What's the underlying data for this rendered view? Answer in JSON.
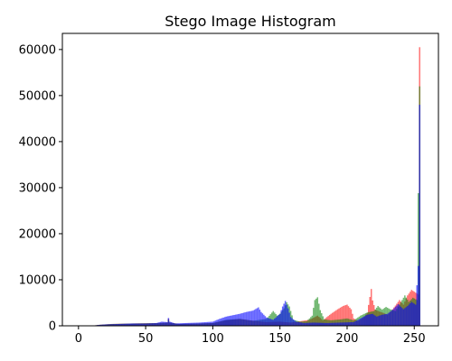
{
  "chart_data": {
    "type": "bar",
    "title": "Stego Image Histogram",
    "xlabel": "",
    "ylabel": "",
    "xlim": [
      -12,
      268
    ],
    "ylim": [
      0,
      63500
    ],
    "xticks": [
      0,
      50,
      100,
      150,
      200,
      250
    ],
    "yticks": [
      0,
      10000,
      20000,
      30000,
      40000,
      50000,
      60000
    ],
    "grid": false,
    "legend": "none",
    "bin_width": 1,
    "series": [
      {
        "color": "#ff0000",
        "alpha": 0.55,
        "points": [
          [
            0,
            0
          ],
          [
            10,
            0
          ],
          [
            15,
            200
          ],
          [
            25,
            400
          ],
          [
            40,
            500
          ],
          [
            60,
            600
          ],
          [
            66,
            700
          ],
          [
            67,
            1500
          ],
          [
            68,
            700
          ],
          [
            75,
            400
          ],
          [
            90,
            500
          ],
          [
            100,
            600
          ],
          [
            110,
            1200
          ],
          [
            120,
            1500
          ],
          [
            130,
            1100
          ],
          [
            140,
            800
          ],
          [
            150,
            900
          ],
          [
            158,
            700
          ],
          [
            165,
            1000
          ],
          [
            172,
            1300
          ],
          [
            178,
            2200
          ],
          [
            182,
            1200
          ],
          [
            188,
            2600
          ],
          [
            193,
            3600
          ],
          [
            197,
            4300
          ],
          [
            200,
            4600
          ],
          [
            203,
            3600
          ],
          [
            205,
            1600
          ],
          [
            208,
            1000
          ],
          [
            212,
            1700
          ],
          [
            215,
            2800
          ],
          [
            218,
            8000
          ],
          [
            219,
            5500
          ],
          [
            221,
            3500
          ],
          [
            224,
            3100
          ],
          [
            227,
            2800
          ],
          [
            230,
            2400
          ],
          [
            233,
            3200
          ],
          [
            236,
            4400
          ],
          [
            239,
            5600
          ],
          [
            242,
            4600
          ],
          [
            245,
            6600
          ],
          [
            248,
            7800
          ],
          [
            251,
            7200
          ],
          [
            253,
            6800
          ],
          [
            254,
            60500
          ],
          [
            255,
            0
          ]
        ]
      },
      {
        "color": "#008000",
        "alpha": 0.55,
        "points": [
          [
            0,
            0
          ],
          [
            10,
            0
          ],
          [
            15,
            200
          ],
          [
            25,
            400
          ],
          [
            40,
            500
          ],
          [
            60,
            600
          ],
          [
            66,
            700
          ],
          [
            67,
            1400
          ],
          [
            68,
            700
          ],
          [
            75,
            400
          ],
          [
            90,
            500
          ],
          [
            100,
            600
          ],
          [
            110,
            1300
          ],
          [
            120,
            1500
          ],
          [
            130,
            1100
          ],
          [
            140,
            1500
          ],
          [
            145,
            3200
          ],
          [
            148,
            2200
          ],
          [
            150,
            2600
          ],
          [
            153,
            3800
          ],
          [
            155,
            5100
          ],
          [
            157,
            4200
          ],
          [
            160,
            1300
          ],
          [
            165,
            900
          ],
          [
            170,
            1000
          ],
          [
            174,
            2200
          ],
          [
            176,
            5600
          ],
          [
            178,
            6200
          ],
          [
            180,
            3400
          ],
          [
            183,
            1400
          ],
          [
            188,
            1200
          ],
          [
            195,
            1400
          ],
          [
            200,
            1600
          ],
          [
            205,
            1200
          ],
          [
            210,
            2200
          ],
          [
            215,
            2900
          ],
          [
            220,
            3200
          ],
          [
            223,
            4300
          ],
          [
            226,
            3500
          ],
          [
            229,
            4100
          ],
          [
            232,
            3600
          ],
          [
            236,
            3200
          ],
          [
            240,
            5100
          ],
          [
            243,
            6600
          ],
          [
            246,
            5200
          ],
          [
            249,
            6100
          ],
          [
            252,
            5600
          ],
          [
            254,
            52000
          ],
          [
            255,
            0
          ]
        ]
      },
      {
        "color": "#0000ff",
        "alpha": 0.6,
        "points": [
          [
            0,
            0
          ],
          [
            10,
            0
          ],
          [
            15,
            200
          ],
          [
            20,
            300
          ],
          [
            30,
            400
          ],
          [
            40,
            500
          ],
          [
            50,
            500
          ],
          [
            58,
            600
          ],
          [
            62,
            900
          ],
          [
            66,
            800
          ],
          [
            67,
            1700
          ],
          [
            68,
            900
          ],
          [
            72,
            500
          ],
          [
            80,
            600
          ],
          [
            90,
            700
          ],
          [
            100,
            900
          ],
          [
            105,
            1500
          ],
          [
            110,
            2000
          ],
          [
            115,
            2300
          ],
          [
            120,
            2600
          ],
          [
            125,
            3000
          ],
          [
            130,
            3300
          ],
          [
            134,
            4000
          ],
          [
            136,
            3000
          ],
          [
            140,
            1800
          ],
          [
            145,
            1300
          ],
          [
            150,
            2600
          ],
          [
            152,
            4200
          ],
          [
            154,
            5400
          ],
          [
            156,
            3800
          ],
          [
            158,
            1900
          ],
          [
            162,
            900
          ],
          [
            168,
            600
          ],
          [
            175,
            700
          ],
          [
            185,
            600
          ],
          [
            195,
            700
          ],
          [
            205,
            800
          ],
          [
            210,
            1600
          ],
          [
            215,
            2400
          ],
          [
            219,
            2600
          ],
          [
            222,
            2000
          ],
          [
            226,
            2400
          ],
          [
            230,
            2600
          ],
          [
            234,
            3500
          ],
          [
            238,
            4700
          ],
          [
            242,
            3600
          ],
          [
            245,
            4300
          ],
          [
            248,
            5200
          ],
          [
            251,
            4600
          ],
          [
            253,
            13000
          ],
          [
            254,
            48000
          ],
          [
            255,
            0
          ]
        ]
      }
    ]
  }
}
